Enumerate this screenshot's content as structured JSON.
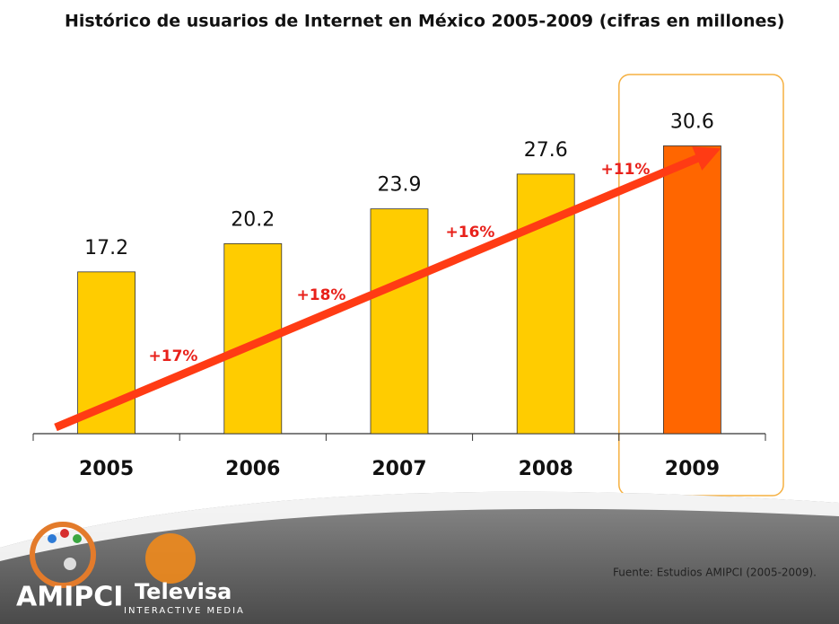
{
  "chart_data": {
    "type": "bar",
    "title": "Histórico de usuarios de Internet en México 2005-2009 (cifras en millones)",
    "categories": [
      "2005",
      "2006",
      "2007",
      "2008",
      "2009"
    ],
    "values": [
      17.2,
      20.2,
      23.9,
      27.6,
      30.6
    ],
    "colors": [
      "#ffcc00",
      "#ffcc00",
      "#ffcc00",
      "#ffcc00",
      "#ff6600"
    ],
    "ylim": [
      0,
      40
    ],
    "annotations": [
      "+17%",
      "+18%",
      "+16%",
      "+11%"
    ],
    "arrow_color": "#ff3b14"
  },
  "footer": {
    "source": "Fuente: Estudios AMIPCI (2005-2009).",
    "logo_left": "AMIPCI",
    "logo_right": "Televisa",
    "logo_right_sub": "INTERACTIVE MEDIA"
  }
}
